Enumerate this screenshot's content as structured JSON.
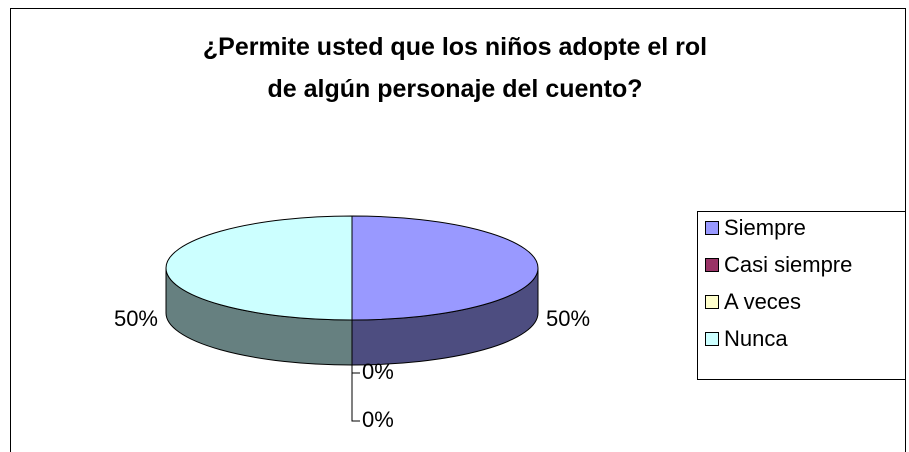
{
  "chart_data": {
    "type": "pie3d",
    "title": "¿Permite usted que los niños adopte el rol de algún personaje del cuento?",
    "categories": [
      "Siempre",
      "Casi siempre",
      "A veces",
      "Nunca"
    ],
    "values": [
      50,
      0,
      0,
      50
    ],
    "value_labels": [
      "50%",
      "0%",
      "0%",
      "50%"
    ],
    "colors": [
      "#9999ff",
      "#993366",
      "#ffffcc",
      "#ccffff"
    ],
    "legend": "right"
  }
}
